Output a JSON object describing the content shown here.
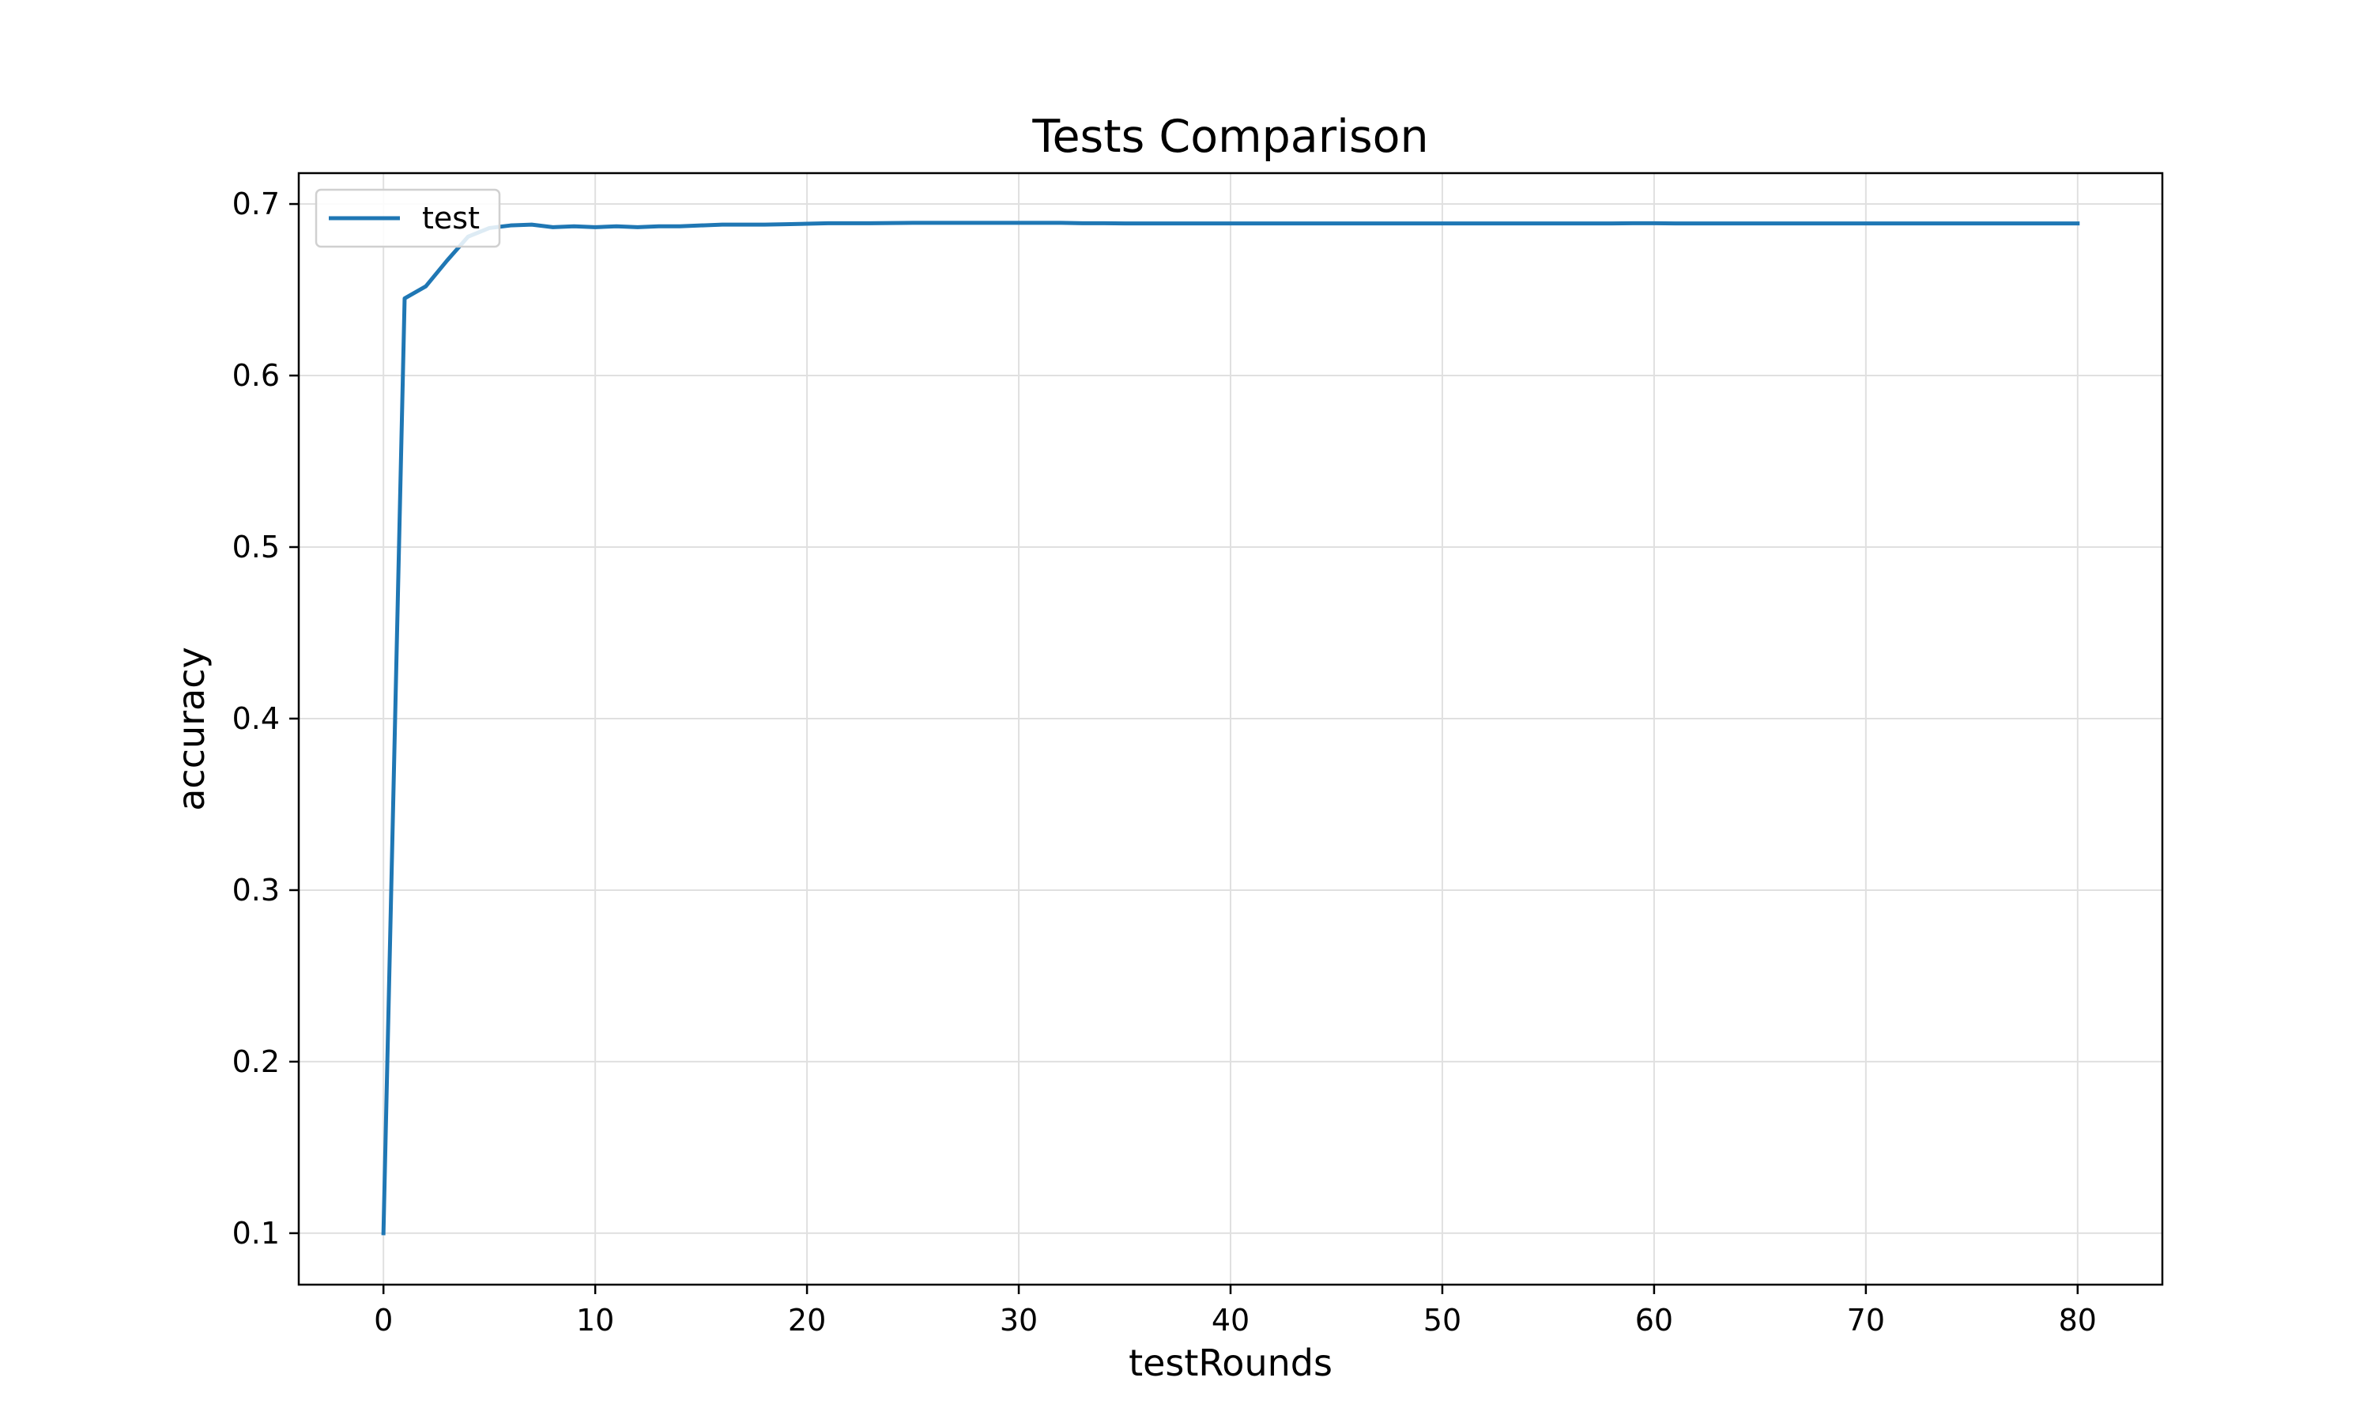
{
  "chart_data": {
    "type": "line",
    "title": "Tests Comparison",
    "xlabel": "testRounds",
    "ylabel": "accuracy",
    "xlim": [
      -4,
      84
    ],
    "ylim": [
      0.07,
      0.718
    ],
    "xticks": [
      0,
      10,
      20,
      30,
      40,
      50,
      60,
      70,
      80
    ],
    "yticks": [
      0.1,
      0.2,
      0.3,
      0.4,
      0.5,
      0.6,
      0.7
    ],
    "xtick_labels": [
      "0",
      "10",
      "20",
      "30",
      "40",
      "50",
      "60",
      "70",
      "80"
    ],
    "ytick_labels": [
      "0.1",
      "0.2",
      "0.3",
      "0.4",
      "0.5",
      "0.6",
      "0.7"
    ],
    "grid": true,
    "legend_position": "upper-left",
    "series": [
      {
        "name": "test",
        "color": "#1f77b4",
        "x": [
          0,
          1,
          2,
          3,
          4,
          5,
          6,
          7,
          8,
          9,
          10,
          11,
          12,
          13,
          14,
          15,
          16,
          17,
          18,
          19,
          20,
          21,
          22,
          23,
          24,
          25,
          26,
          27,
          28,
          29,
          30,
          31,
          32,
          33,
          34,
          35,
          36,
          37,
          38,
          39,
          40,
          41,
          42,
          43,
          44,
          45,
          46,
          47,
          48,
          49,
          50,
          51,
          52,
          53,
          54,
          55,
          56,
          57,
          58,
          59,
          60,
          61,
          62,
          63,
          64,
          65,
          66,
          67,
          68,
          69,
          70,
          71,
          72,
          73,
          74,
          75,
          76,
          77,
          78,
          79,
          80
        ],
        "values": [
          0.1,
          0.645,
          0.652,
          0.667,
          0.681,
          0.686,
          0.6875,
          0.688,
          0.6865,
          0.687,
          0.6865,
          0.687,
          0.6865,
          0.687,
          0.687,
          0.6875,
          0.688,
          0.688,
          0.688,
          0.6882,
          0.6885,
          0.6888,
          0.6888,
          0.6888,
          0.6889,
          0.689,
          0.689,
          0.689,
          0.689,
          0.689,
          0.689,
          0.689,
          0.689,
          0.6888,
          0.6888,
          0.6887,
          0.6887,
          0.6887,
          0.6887,
          0.6887,
          0.6887,
          0.6887,
          0.6887,
          0.6887,
          0.6887,
          0.6887,
          0.6887,
          0.6887,
          0.6887,
          0.6887,
          0.6887,
          0.6887,
          0.6887,
          0.6887,
          0.6887,
          0.6887,
          0.6887,
          0.6887,
          0.6887,
          0.6888,
          0.6888,
          0.6887,
          0.6887,
          0.6887,
          0.6887,
          0.6887,
          0.6887,
          0.6887,
          0.6887,
          0.6887,
          0.6887,
          0.6887,
          0.6887,
          0.6887,
          0.6887,
          0.6887,
          0.6887,
          0.6887,
          0.6887,
          0.6887,
          0.6887
        ]
      }
    ]
  }
}
